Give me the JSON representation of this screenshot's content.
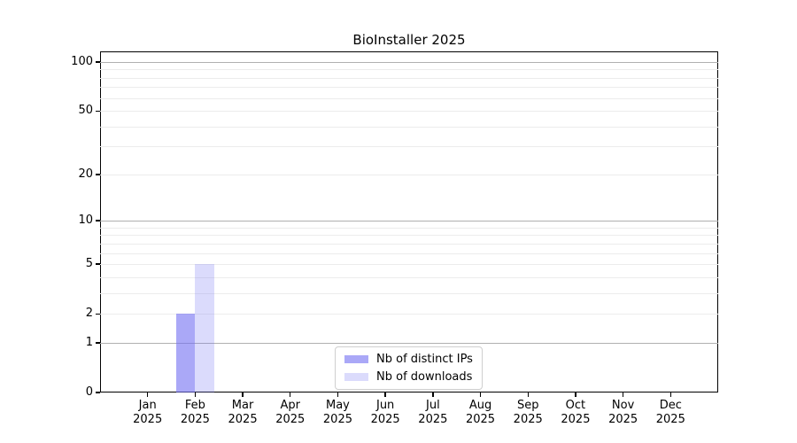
{
  "chart_data": {
    "type": "bar",
    "title": "BioInstaller 2025",
    "categories": [
      "Jan 2025",
      "Feb 2025",
      "Mar 2025",
      "Apr 2025",
      "May 2025",
      "Jun 2025",
      "Jul 2025",
      "Aug 2025",
      "Sep 2025",
      "Oct 2025",
      "Nov 2025",
      "Dec 2025"
    ],
    "series": [
      {
        "name": "Nb of distinct IPs",
        "values": [
          0,
          2,
          0,
          0,
          0,
          0,
          0,
          0,
          0,
          0,
          0,
          0
        ],
        "color": "rgba(113,110,242,0.6)"
      },
      {
        "name": "Nb of downloads",
        "values": [
          0,
          5,
          0,
          0,
          0,
          0,
          0,
          0,
          0,
          0,
          0,
          0
        ],
        "color": "rgba(113,110,242,0.25)"
      }
    ],
    "xlabel": "",
    "ylabel": "",
    "yscale": "log1p",
    "ylim": [
      0,
      117
    ],
    "yticks": [
      0,
      1,
      2,
      5,
      10,
      20,
      50,
      100
    ],
    "ygrid_major": [
      1,
      10,
      100
    ],
    "ygrid_minor": [
      2,
      3,
      4,
      5,
      6,
      7,
      8,
      9,
      20,
      30,
      40,
      50,
      60,
      70,
      80,
      90
    ],
    "grid": "horizontal-only",
    "legend_position": "lower center",
    "colors": {
      "grid_minor": "#ececec",
      "grid_major": "#b0b0b0",
      "spine": "#000000",
      "background": "#ffffff",
      "bar_base": "#716ef2"
    }
  }
}
